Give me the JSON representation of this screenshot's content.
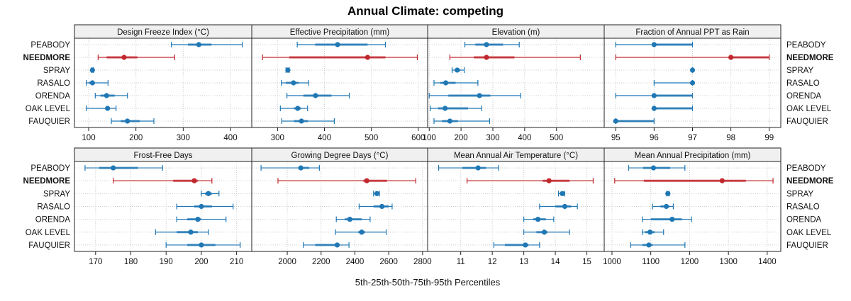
{
  "chart_data": {
    "type": "dotplot-percentile",
    "title": "Annual Climate: competing",
    "xlabel": "5th-25th-50th-75th-95th Percentiles",
    "rows": [
      "PEABODY",
      "NEEDMORE",
      "SPRAY",
      "RASALO",
      "ORENDA",
      "OAK LEVEL",
      "FAUQUIER"
    ],
    "highlight_row": "NEEDMORE",
    "colors": {
      "default": "#1f77b4",
      "default_dark": "#0f6aab",
      "highlight": "#c0282d",
      "grid": "#cccccc",
      "strip_bg": "#f0f0f0"
    },
    "grid": true,
    "panels": [
      {
        "title": "Design Freeze Index (°C)",
        "xlim": [
          70,
          445
        ],
        "ticks": [
          100,
          200,
          300,
          400
        ],
        "tick_position": "top-panel-bottom",
        "data": {
          "PEABODY": [
            275,
            310,
            333,
            360,
            425
          ],
          "NEEDMORE": [
            120,
            138,
            175,
            203,
            282
          ],
          "SPRAY": [
            106,
            107,
            108,
            109,
            110
          ],
          "RASALO": [
            95,
            100,
            108,
            112,
            141
          ],
          "ORENDA": [
            114,
            125,
            138,
            155,
            182
          ],
          "OAK LEVEL": [
            95,
            135,
            140,
            143,
            158
          ],
          "FAUQUIER": [
            148,
            168,
            182,
            208,
            238
          ]
        }
      },
      {
        "title": "Effective Precipitation (mm)",
        "xlim": [
          245,
          620
        ],
        "ticks": [
          300,
          400,
          500,
          600
        ],
        "data": {
          "PEABODY": [
            342,
            380,
            428,
            492,
            530
          ],
          "NEEDMORE": [
            268,
            325,
            492,
            530,
            598
          ],
          "SPRAY": [
            318,
            319,
            322,
            324,
            325
          ],
          "RASALO": [
            308,
            318,
            334,
            345,
            366
          ],
          "ORENDA": [
            320,
            355,
            381,
            415,
            453
          ],
          "OAK LEVEL": [
            306,
            335,
            343,
            350,
            364
          ],
          "FAUQUIER": [
            309,
            335,
            351,
            365,
            421
          ]
        }
      },
      {
        "title": "Elevation (m)",
        "xlim": [
          95,
          650
        ],
        "ticks": [
          100,
          200,
          300,
          400,
          500
        ],
        "data": {
          "PEABODY": [
            212,
            245,
            280,
            332,
            383
          ],
          "NEEDMORE": [
            165,
            240,
            280,
            368,
            575
          ],
          "SPRAY": [
            172,
            180,
            188,
            198,
            210
          ],
          "RASALO": [
            115,
            135,
            152,
            183,
            253
          ],
          "ORENDA": [
            100,
            160,
            258,
            292,
            387
          ],
          "OAK LEVEL": [
            103,
            128,
            150,
            222,
            265
          ],
          "FAUQUIER": [
            115,
            140,
            165,
            190,
            290
          ]
        }
      },
      {
        "title": "Fraction of Annual PPT as Rain",
        "xlim": [
          94.7,
          99.3
        ],
        "ticks": [
          95,
          96,
          97,
          98,
          99
        ],
        "data": {
          "PEABODY": [
            95,
            96,
            96,
            97,
            97
          ],
          "NEEDMORE": [
            95,
            98,
            98,
            99,
            99
          ],
          "SPRAY": [
            97,
            97,
            97,
            97,
            97
          ],
          "RASALO": [
            96,
            97,
            97,
            97,
            97
          ],
          "ORENDA": [
            95,
            96,
            96,
            97,
            97
          ],
          "OAK LEVEL": [
            96,
            96,
            96,
            97,
            97
          ],
          "FAUQUIER": [
            95,
            95,
            95,
            96,
            96
          ]
        }
      },
      {
        "title": "Frost-Free Days",
        "xlim": [
          164,
          214.3
        ],
        "ticks": [
          170,
          180,
          190,
          200,
          210
        ],
        "data": {
          "PEABODY": [
            167,
            171,
            175,
            182,
            189
          ],
          "NEEDMORE": [
            175,
            192,
            198,
            199,
            203
          ],
          "SPRAY": [
            200,
            201,
            202,
            203,
            205
          ],
          "RASALO": [
            193,
            198,
            200,
            203,
            209
          ],
          "ORENDA": [
            193,
            196,
            199,
            200,
            207
          ],
          "OAK LEVEL": [
            187,
            193,
            197,
            199,
            202
          ],
          "FAUQUIER": [
            190,
            196,
            200,
            204,
            211
          ]
        }
      },
      {
        "title": "Growing Degree Days (°C)",
        "xlim": [
          1790,
          2830
        ],
        "ticks": [
          2000,
          2200,
          2400,
          2600,
          2800
        ],
        "data": {
          "PEABODY": [
            1845,
            2080,
            2080,
            2130,
            2190
          ],
          "NEEDMORE": [
            1945,
            2450,
            2470,
            2590,
            2760
          ],
          "SPRAY": [
            2510,
            2520,
            2530,
            2540,
            2545
          ],
          "RASALO": [
            2425,
            2510,
            2560,
            2600,
            2620
          ],
          "ORENDA": [
            2290,
            2340,
            2370,
            2440,
            2490
          ],
          "OAK LEVEL": [
            2285,
            2420,
            2440,
            2460,
            2585
          ],
          "FAUQUIER": [
            2095,
            2165,
            2295,
            2310,
            2365
          ]
        }
      },
      {
        "title": "Mean Annual Air Temperature (°C)",
        "xlim": [
          9.95,
          15.55
        ],
        "ticks": [
          11,
          12,
          13,
          14,
          15
        ],
        "data": {
          "PEABODY": [
            10.3,
            11.05,
            11.55,
            11.8,
            12.2
          ],
          "NEEDMORE": [
            11.2,
            13.6,
            13.8,
            14.45,
            15.2
          ],
          "SPRAY": [
            14.1,
            14.15,
            14.22,
            14.27,
            14.3
          ],
          "RASALO": [
            13.5,
            14.0,
            14.3,
            14.5,
            14.7
          ],
          "ORENDA": [
            13.0,
            13.3,
            13.45,
            13.7,
            13.95
          ],
          "OAK LEVEL": [
            13.0,
            13.4,
            13.65,
            13.75,
            14.45
          ],
          "FAUQUIER": [
            12.05,
            12.4,
            13.05,
            13.15,
            13.5
          ]
        }
      },
      {
        "title": "Mean Annual Precipitation (mm)",
        "xlim": [
          980,
          1435
        ],
        "ticks": [
          1000,
          1100,
          1200,
          1300,
          1400
        ],
        "data": {
          "PEABODY": [
            1043,
            1080,
            1107,
            1150,
            1188
          ],
          "NEEDMORE": [
            1007,
            1082,
            1284,
            1345,
            1415
          ],
          "SPRAY": [
            1141,
            1142,
            1144,
            1146,
            1147
          ],
          "RASALO": [
            1105,
            1125,
            1140,
            1148,
            1158
          ],
          "ORENDA": [
            1078,
            1100,
            1155,
            1180,
            1205
          ],
          "OAK LEVEL": [
            1078,
            1085,
            1098,
            1110,
            1133
          ],
          "FAUQUIER": [
            1048,
            1078,
            1095,
            1105,
            1188
          ]
        }
      }
    ]
  }
}
